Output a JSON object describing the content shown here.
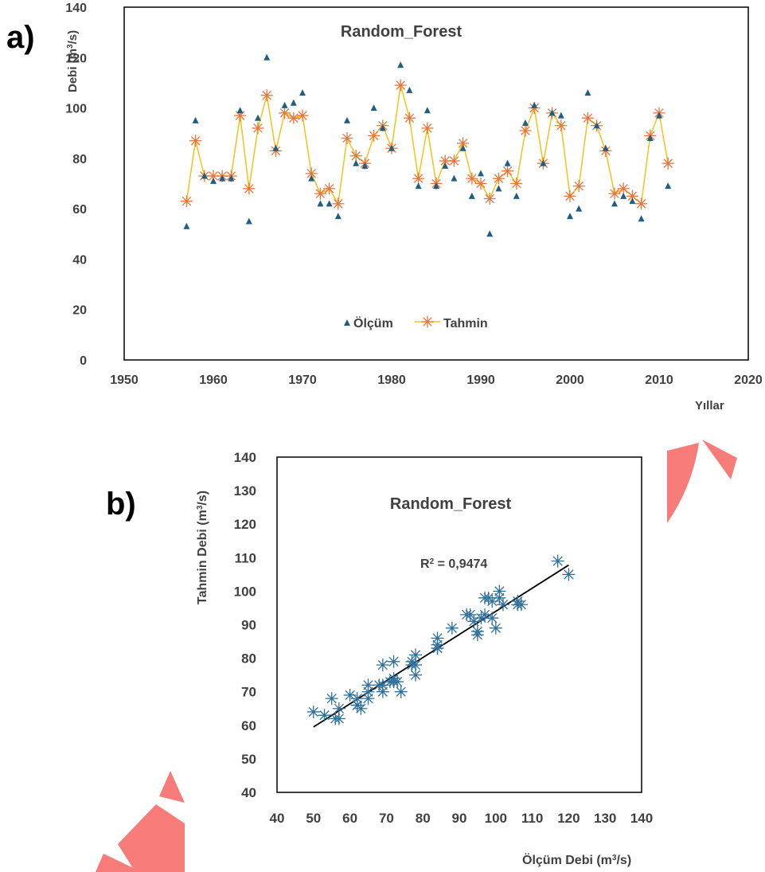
{
  "colors": {
    "observed": "#1f5f80",
    "predicted_line": "#f4c21a",
    "predicted_marker": "#e8743b",
    "scatter_marker": "#2f6f9a",
    "trendline": "#000000",
    "watermark": "#f77b78"
  },
  "panel_a": {
    "label": "a)",
    "y_unit_sup": "3",
    "ylabel_pre": "Debi (m",
    "ylabel_post": "/s)",
    "xlabel": "Yıllar"
  },
  "panel_b": {
    "label": "b)",
    "r2_label": "R",
    "r2_sup": "2",
    "r2_value": " = 0,9474",
    "ylabel_pre": "Tahmin Debi (m",
    "ylabel_sup": "3",
    "ylabel_post": "/s)",
    "xlabel_pre": "Ölçüm Debi (m",
    "xlabel_sup": "3",
    "xlabel_post": "/s)"
  },
  "chart_data": [
    {
      "type": "line",
      "title": "Random_Forest",
      "xlim": [
        1950,
        2020
      ],
      "ylim": [
        0,
        140
      ],
      "x_ticks": [
        1950,
        1960,
        1970,
        1980,
        1990,
        2000,
        2010,
        2020
      ],
      "y_ticks": [
        0,
        20,
        40,
        60,
        80,
        100,
        120,
        140
      ],
      "grid": false,
      "legend_position": "bottom-center",
      "x": [
        1957,
        1958,
        1959,
        1960,
        1961,
        1962,
        1963,
        1964,
        1965,
        1966,
        1967,
        1968,
        1969,
        1970,
        1971,
        1972,
        1973,
        1974,
        1975,
        1976,
        1977,
        1978,
        1979,
        1980,
        1981,
        1982,
        1983,
        1984,
        1985,
        1986,
        1987,
        1988,
        1989,
        1990,
        1991,
        1992,
        1993,
        1994,
        1995,
        1996,
        1997,
        1998,
        1999,
        2000,
        2001,
        2002,
        2003,
        2004,
        2005,
        2006,
        2007,
        2008,
        2009,
        2010,
        2011
      ],
      "series": [
        {
          "name": "Ölçüm",
          "marker": "triangle",
          "values": [
            53,
            95,
            73,
            71,
            72,
            72,
            99,
            55,
            96,
            120,
            84,
            101,
            102,
            106,
            72,
            62,
            62,
            57,
            95,
            78,
            77,
            100,
            92,
            84,
            117,
            107,
            69,
            99,
            69,
            77,
            72,
            84,
            65,
            74,
            50,
            68,
            78,
            65,
            94,
            101,
            78,
            98,
            97,
            57,
            60,
            106,
            93,
            84,
            62,
            65,
            63,
            56,
            88,
            97,
            69
          ]
        },
        {
          "name": "Tahmin",
          "marker": "asterisk",
          "values": [
            63,
            87,
            73,
            73,
            73,
            73,
            97,
            68,
            92,
            105,
            83,
            98,
            96,
            97,
            74,
            66,
            68,
            62,
            88,
            81,
            78,
            89,
            93,
            84,
            109,
            96,
            72,
            92,
            70,
            79,
            79,
            86,
            72,
            70,
            64,
            72,
            75,
            70,
            91,
            100,
            78,
            98,
            93,
            65,
            69,
            96,
            93,
            83,
            66,
            68,
            65,
            62,
            89,
            98,
            78
          ]
        }
      ]
    },
    {
      "type": "scatter",
      "title": "Random_Forest",
      "xlim": [
        40,
        140
      ],
      "ylim": [
        40,
        140
      ],
      "x_ticks": [
        40,
        50,
        60,
        70,
        80,
        90,
        100,
        110,
        120,
        130,
        140
      ],
      "y_ticks": [
        40,
        50,
        60,
        70,
        80,
        90,
        100,
        110,
        120,
        130,
        140
      ],
      "grid": false,
      "r_squared": 0.9474,
      "trendline": {
        "slope": 0.69,
        "intercept": 25.0,
        "x_range": [
          50,
          120
        ]
      },
      "x": [
        53,
        95,
        73,
        71,
        72,
        72,
        99,
        55,
        96,
        120,
        84,
        101,
        102,
        106,
        72,
        62,
        62,
        57,
        95,
        78,
        77,
        100,
        92,
        84,
        117,
        107,
        69,
        99,
        69,
        77,
        72,
        84,
        65,
        74,
        50,
        68,
        78,
        65,
        94,
        101,
        78,
        98,
        97,
        57,
        60,
        106,
        93,
        84,
        62,
        65,
        63,
        56,
        88,
        97,
        69
      ],
      "y": [
        63,
        87,
        73,
        73,
        73,
        73,
        97,
        68,
        92,
        105,
        83,
        98,
        96,
        97,
        74,
        66,
        68,
        62,
        88,
        81,
        78,
        89,
        93,
        84,
        109,
        96,
        72,
        92,
        70,
        79,
        79,
        86,
        72,
        70,
        64,
        72,
        75,
        70,
        91,
        100,
        78,
        98,
        93,
        65,
        69,
        96,
        93,
        83,
        66,
        68,
        65,
        62,
        89,
        98,
        78
      ]
    }
  ]
}
